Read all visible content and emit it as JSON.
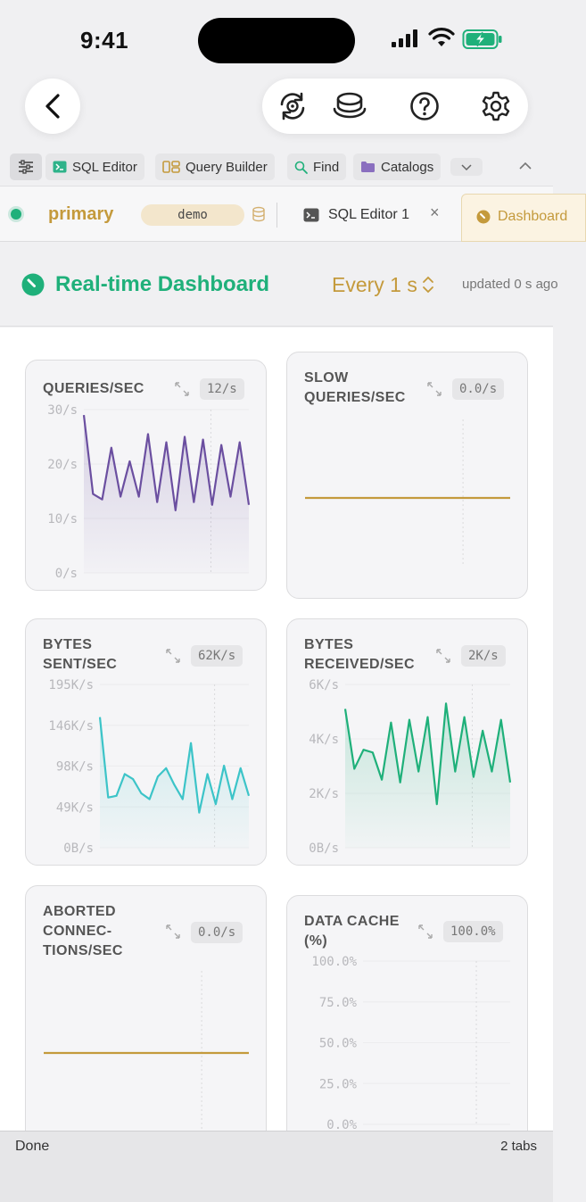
{
  "status": {
    "time": "9:41"
  },
  "nav": {
    "back_icon": "chevron-left-icon",
    "icons": [
      "sync-icon",
      "database-stack-icon",
      "help-icon",
      "settings-icon"
    ]
  },
  "toolbar": {
    "items": [
      {
        "label": "SQL Editor",
        "icon": "terminal-icon"
      },
      {
        "label": "Query Builder",
        "icon": "query-builder-icon"
      },
      {
        "label": "Find",
        "icon": "search-icon"
      },
      {
        "label": "Catalogs",
        "icon": "folder-icon"
      }
    ]
  },
  "tabs": {
    "connection": "primary",
    "database": "demo",
    "sql_tab": "SQL Editor 1",
    "close_glyph": "×",
    "dashboard_tab": "Dashboard"
  },
  "dashboard": {
    "title": "Real-time Dashboard",
    "interval": "Every 1 s",
    "updated": "updated 0 s ago"
  },
  "colors": {
    "accent_green": "#1fb07a",
    "accent_gold": "#c49a3c",
    "purple": "#6b4fa0",
    "teal": "#3cc4c8"
  },
  "charts": {
    "queries": {
      "title": "QUERIES/SEC",
      "value": "12/s",
      "ticks": [
        "30/s",
        "20/s",
        "10/s",
        "0/s"
      ]
    },
    "slow": {
      "title_line1": "SLOW",
      "title_line2": "QUERIES/SEC",
      "value": "0.0/s"
    },
    "bytes_sent": {
      "title_line1": "BYTES",
      "title_line2": "SENT/SEC",
      "value": "62K/s",
      "ticks": [
        "195K/s",
        "146K/s",
        "98K/s",
        "49K/s",
        "0B/s"
      ]
    },
    "bytes_received": {
      "title_line1": "BYTES",
      "title_line2": "RECEIVED/SEC",
      "value": "2K/s",
      "ticks": [
        "6K/s",
        "4K/s",
        "2K/s",
        "0B/s"
      ]
    },
    "aborted": {
      "title_line1": "ABORTED",
      "title_line2": "CONNEC-",
      "title_line3": "TIONS/SEC",
      "value": "0.0/s"
    },
    "data_cache": {
      "title_line1": "DATA CACHE",
      "title_line2": "(%)",
      "value": "100.0%",
      "ticks": [
        "100.0%",
        "75.0%",
        "50.0%",
        "25.0%",
        "0.0%"
      ]
    }
  },
  "chart_data": [
    {
      "type": "area",
      "title": "QUERIES/SEC",
      "ylim": [
        0,
        30
      ],
      "y_ticks": [
        "30/s",
        "20/s",
        "10/s",
        "0/s"
      ],
      "series": [
        {
          "values": [
            29,
            14.5,
            13.5,
            23,
            14,
            20.5,
            14,
            25.5,
            13,
            24,
            11.5,
            25,
            13,
            24.5,
            12.5,
            23.5,
            14,
            24,
            12.5
          ]
        }
      ]
    },
    {
      "type": "line",
      "title": "SLOW QUERIES/SEC",
      "series": [
        {
          "values": [
            0,
            0
          ]
        }
      ]
    },
    {
      "type": "area",
      "title": "BYTES SENT/SEC",
      "ylim": [
        0,
        195
      ],
      "y_ticks": [
        "195K/s",
        "146K/s",
        "98K/s",
        "49K/s",
        "0B/s"
      ],
      "series": [
        {
          "values": [
            156,
            60,
            62,
            88,
            82,
            65,
            58,
            85,
            95,
            75,
            58,
            125,
            42,
            88,
            52,
            98,
            58,
            95,
            62
          ]
        }
      ]
    },
    {
      "type": "area",
      "title": "BYTES RECEIVED/SEC",
      "ylim": [
        0,
        6
      ],
      "y_ticks": [
        "6K/s",
        "4K/s",
        "2K/s",
        "0B/s"
      ],
      "series": [
        {
          "values": [
            5.1,
            2.9,
            3.6,
            3.5,
            2.5,
            4.6,
            2.4,
            4.7,
            2.8,
            4.8,
            1.6,
            5.3,
            2.8,
            4.8,
            2.6,
            4.3,
            2.8,
            4.7,
            2.4
          ]
        }
      ]
    },
    {
      "type": "line",
      "title": "ABORTED CONNEC-TIONS/SEC",
      "series": [
        {
          "values": [
            0,
            0
          ]
        }
      ]
    },
    {
      "type": "line",
      "title": "DATA CACHE (%)",
      "ylim": [
        0,
        100
      ],
      "y_ticks": [
        "100.0%",
        "75.0%",
        "50.0%",
        "25.0%",
        "0.0%"
      ],
      "series": []
    }
  ],
  "bottom": {
    "done": "Done",
    "tabs_count": "2 tabs"
  }
}
